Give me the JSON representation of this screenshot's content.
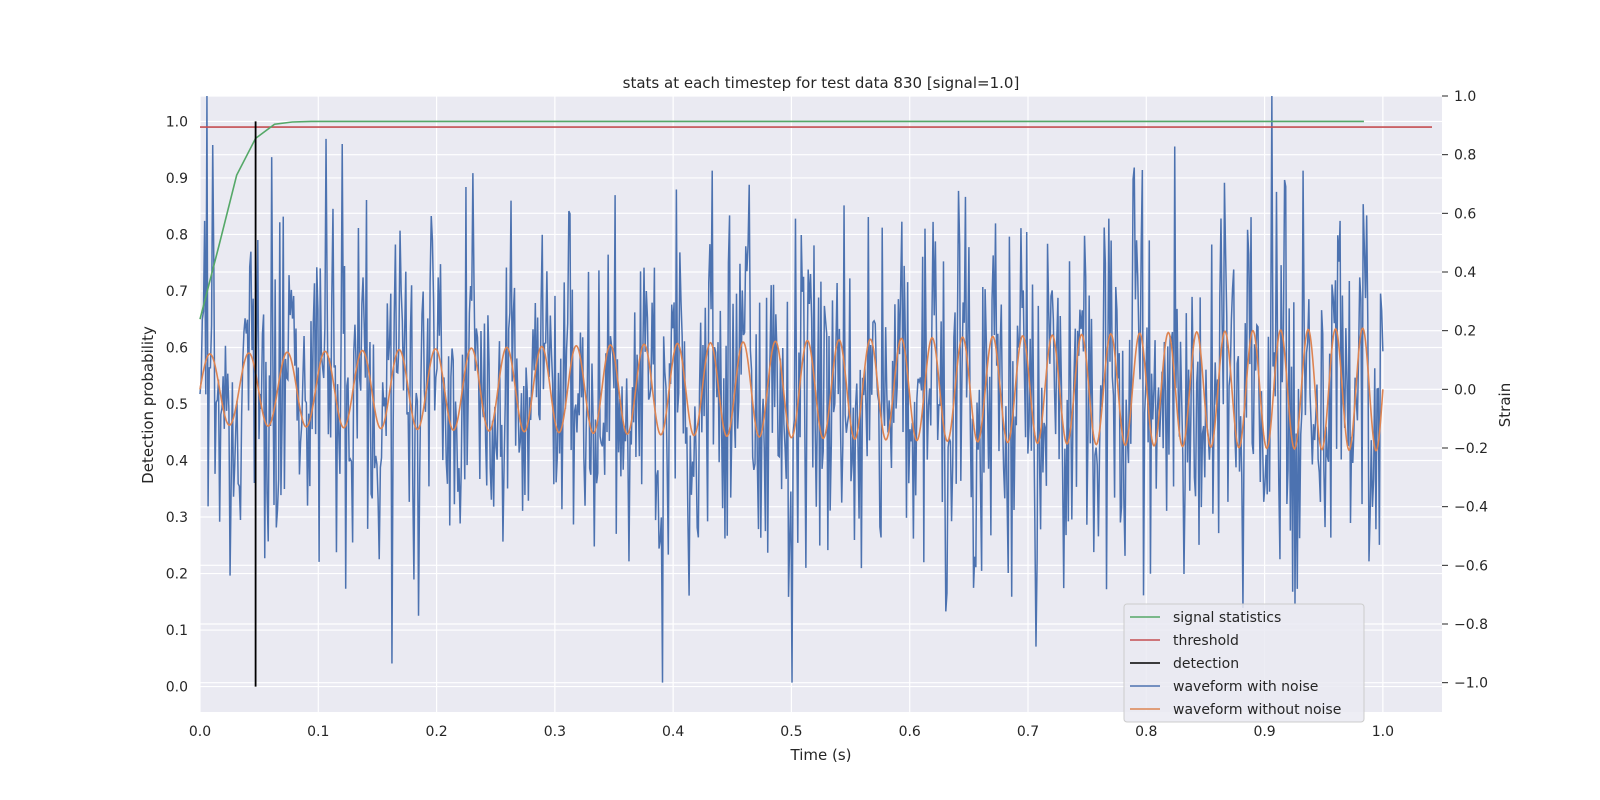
{
  "chart_data": {
    "type": "line",
    "title": "stats at each timestep for test data 830 [signal=1.0]",
    "xlabel": "Time (s)",
    "ylabel": "Detection probability",
    "y2label": "Strain",
    "xlim": [
      0.0,
      1.05
    ],
    "ylim": [
      -0.045,
      1.045
    ],
    "y2lim": [
      -1.1,
      1.0
    ],
    "xticks": [
      "0.0",
      "0.1",
      "0.2",
      "0.3",
      "0.4",
      "0.5",
      "0.6",
      "0.7",
      "0.8",
      "0.9",
      "1.0"
    ],
    "yticks": [
      "0.0",
      "0.1",
      "0.2",
      "0.3",
      "0.4",
      "0.5",
      "0.6",
      "0.7",
      "0.8",
      "0.9",
      "1.0"
    ],
    "y2ticks": [
      "−1.0",
      "−0.8",
      "−0.6",
      "−0.4",
      "−0.2",
      "0.0",
      "0.2",
      "0.4",
      "0.6",
      "0.8",
      "1.0"
    ],
    "grid": true,
    "legend_position": "bottom-right",
    "signal_statistics": {
      "name": "signal statistics",
      "color": "#55a868",
      "x": [
        0.0,
        0.016,
        0.031,
        0.047,
        0.063,
        0.078,
        0.094,
        0.109,
        0.2,
        0.4,
        0.6,
        0.8,
        0.984
      ],
      "y": [
        0.65,
        0.78,
        0.905,
        0.97,
        0.995,
        0.999,
        1.0,
        1.0,
        1.0,
        1.0,
        1.0,
        1.0,
        1.0
      ]
    },
    "threshold": {
      "name": "threshold",
      "color": "#c44e52",
      "y": 0.99
    },
    "detection": {
      "name": "detection",
      "color": "#000000",
      "x": 0.047,
      "y": [
        0.0,
        1.0
      ]
    },
    "waveform_with_noise": {
      "name": "waveform with noise",
      "color": "#4c72b0",
      "x_start": 0.0,
      "x_end": 1.0,
      "amplitude_envelope": [
        0.55,
        0.6
      ],
      "noise_std": 0.3
    },
    "waveform_without_noise": {
      "name": "waveform without noise",
      "color": "#dd8452",
      "x_start": 0.0,
      "x_end": 1.0,
      "amplitude_start": 0.12,
      "amplitude_end": 0.21,
      "freq_start_hz": 30,
      "freq_end_hz": 44
    },
    "legend": [
      "signal statistics",
      "threshold",
      "detection",
      "waveform with noise",
      "waveform without noise"
    ]
  }
}
